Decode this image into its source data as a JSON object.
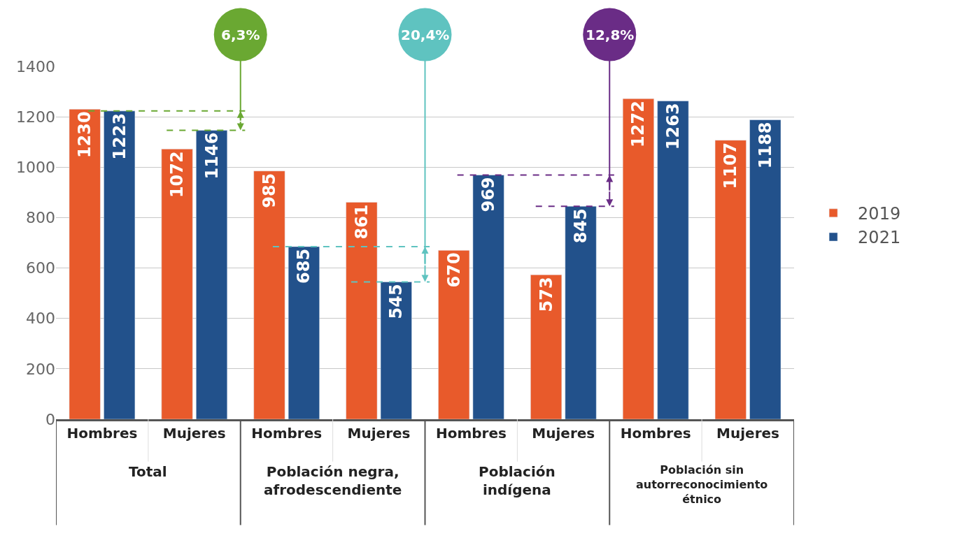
{
  "chart_data": {
    "type": "bar",
    "categories": [
      "Hombres",
      "Mujeres",
      "Hombres",
      "Mujeres",
      "Hombres",
      "Mujeres",
      "Hombres",
      "Mujeres"
    ],
    "series": [
      {
        "name": "2019",
        "color": "#e85a2b",
        "values": [
          1230,
          1072,
          985,
          861,
          670,
          573,
          1272,
          1107
        ]
      },
      {
        "name": "2021",
        "color": "#22518b",
        "values": [
          1223,
          1146,
          685,
          545,
          969,
          845,
          1263,
          1188
        ]
      }
    ],
    "annotations": [
      "Total",
      "Población negra,\nafrodescendiente",
      "Población\nindígena",
      "Población sin\nautorreconocimiento\nétnico",
      "6,3%",
      "20,4%",
      "12,8%"
    ],
    "ylim": [
      0,
      1400
    ],
    "yticks": [
      0,
      200,
      400,
      600,
      800,
      1000,
      1200,
      1400
    ],
    "ref_lines": [
      {
        "axis": "y",
        "value": 1223,
        "color": "#6aa832",
        "line_style": "dashed"
      },
      {
        "axis": "y",
        "value": 1146,
        "color": "#6aa832",
        "line_style": "dashed"
      },
      {
        "axis": "y",
        "value": 685,
        "color": "#5fc3c0",
        "line_style": "dashed"
      },
      {
        "axis": "y",
        "value": 545,
        "color": "#5fc3c0",
        "line_style": "dashed"
      },
      {
        "axis": "y",
        "value": 969,
        "color": "#6a2c86",
        "line_style": "dashed"
      },
      {
        "axis": "y",
        "value": 845,
        "color": "#6a2c86",
        "line_style": "dashed"
      }
    ],
    "grid": "y",
    "legend": "right",
    "data_labels": true
  }
}
